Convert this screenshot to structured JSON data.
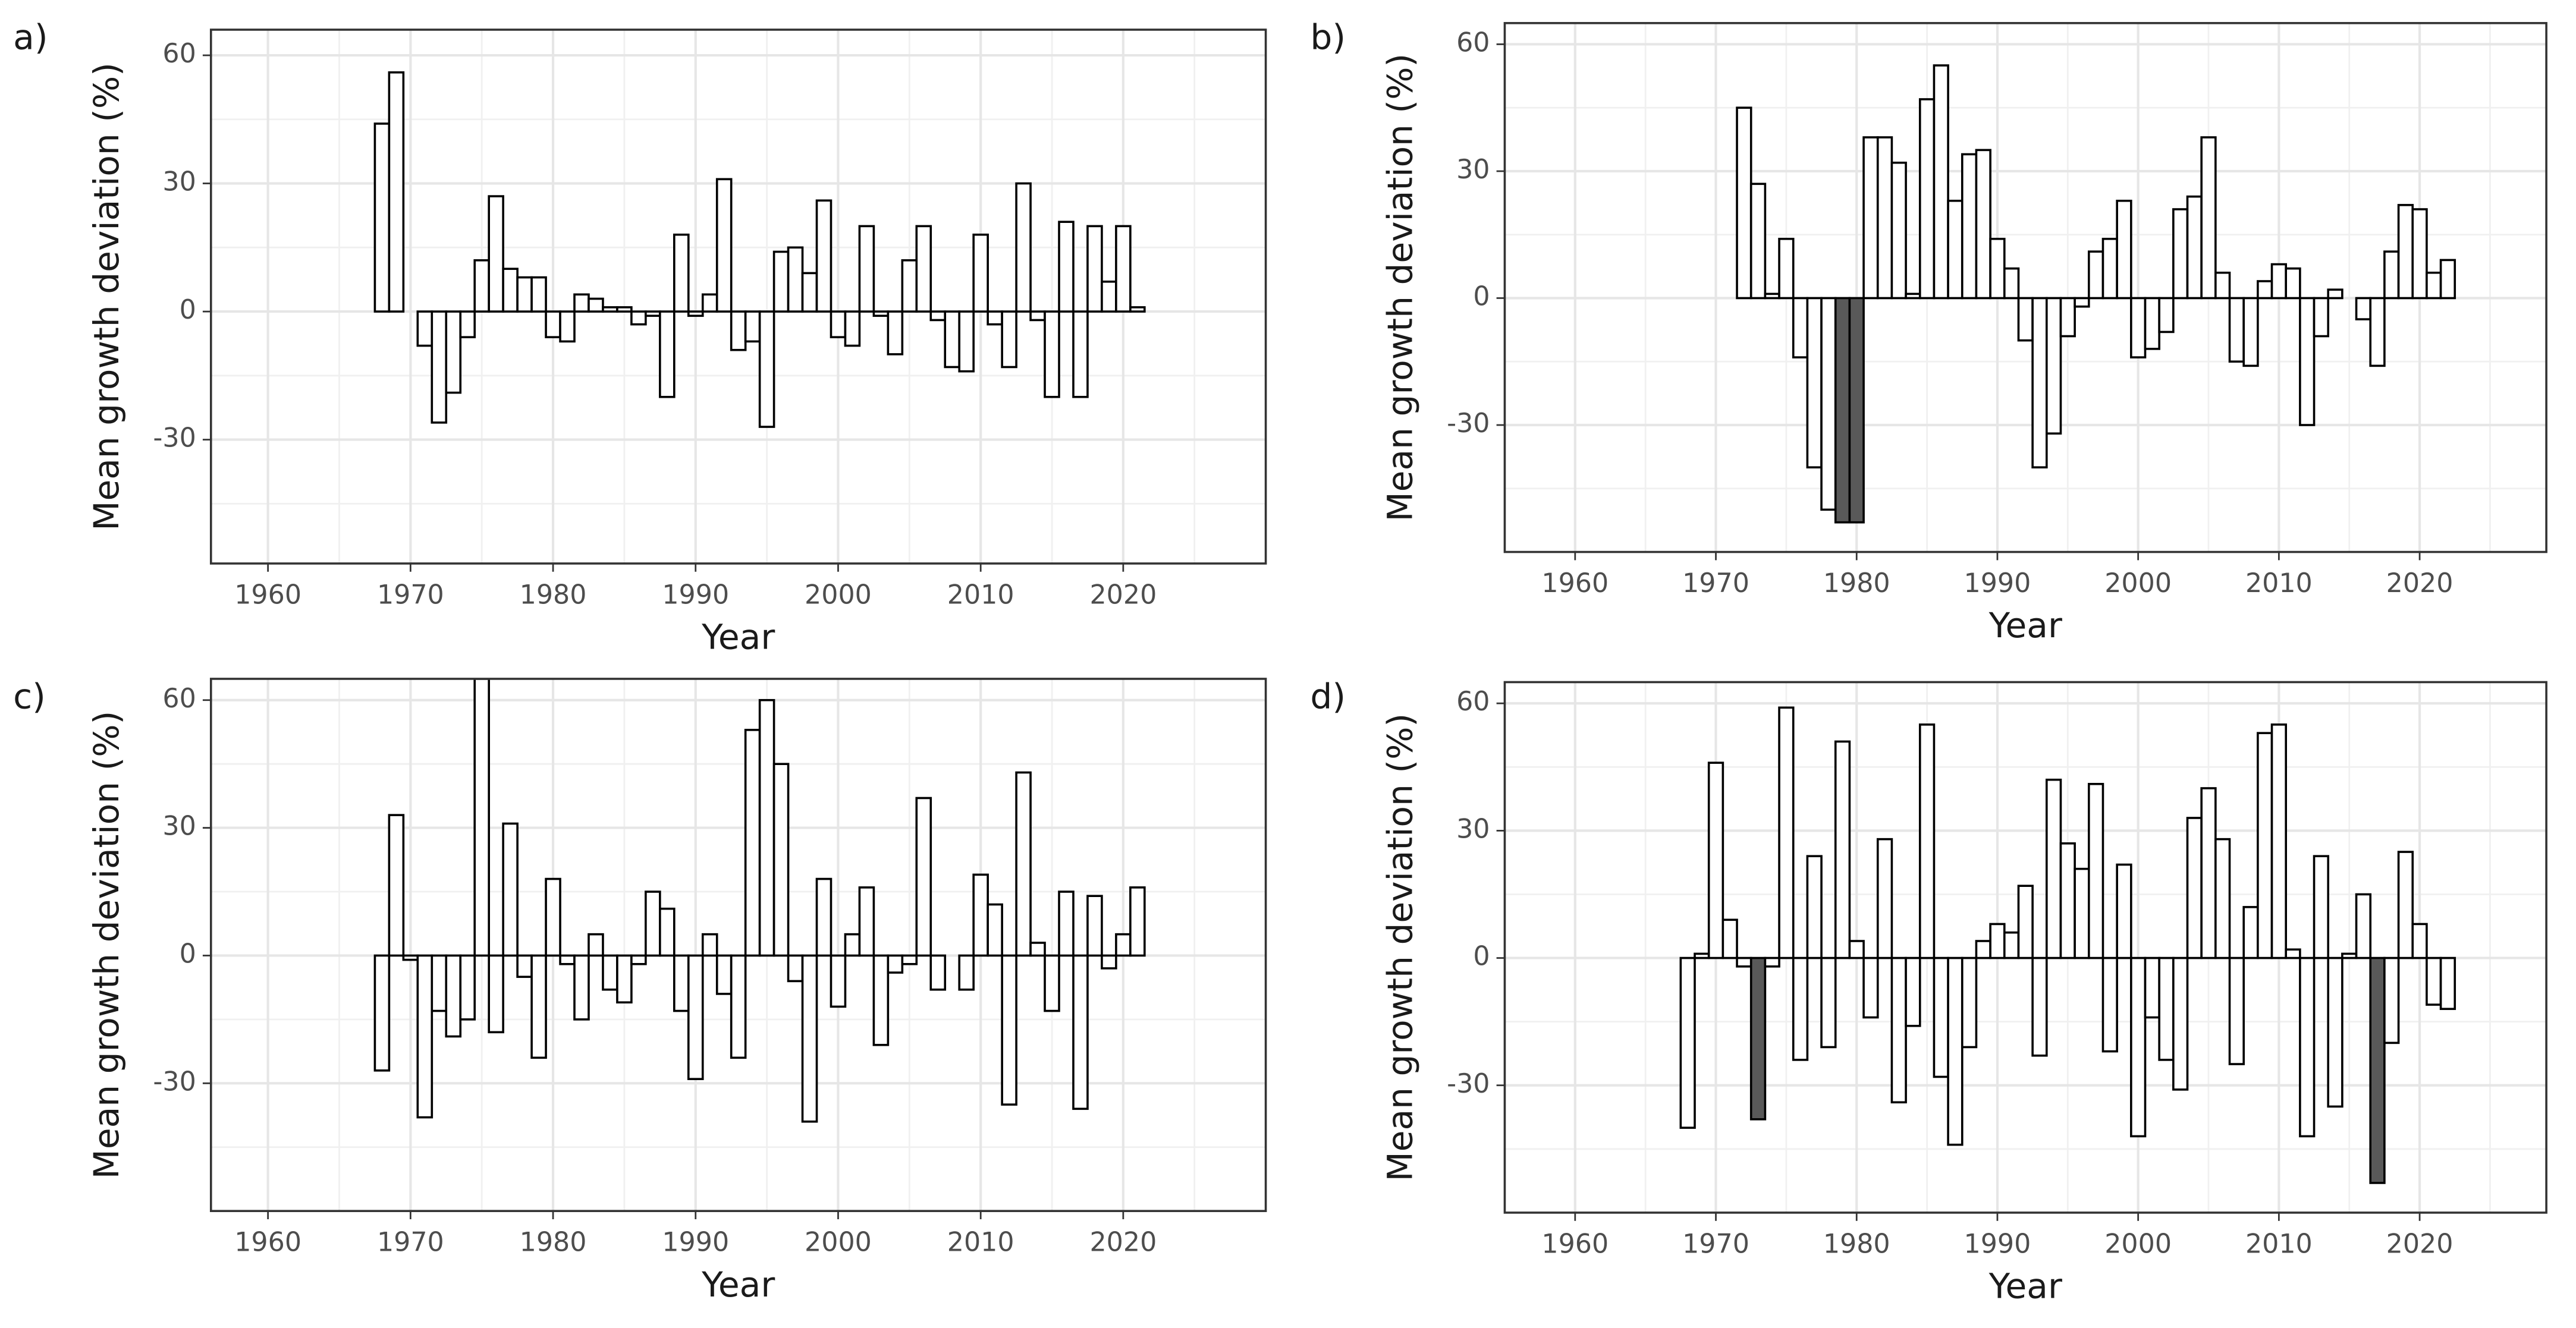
{
  "chart_data": [
    {
      "type": "bar",
      "panel": "a)",
      "x_label": "Year",
      "y_label": "Mean growth deviation (%)",
      "color": "#ffffff",
      "highlight_color": "#595959",
      "highlighted_x": [],
      "grid": true,
      "x": [
        1968,
        1969,
        1970,
        1971,
        1972,
        1973,
        1974,
        1975,
        1976,
        1977,
        1978,
        1979,
        1980,
        1981,
        1982,
        1983,
        1984,
        1985,
        1986,
        1987,
        1988,
        1989,
        1990,
        1991,
        1992,
        1993,
        1994,
        1995,
        1996,
        1997,
        1998,
        1999,
        2000,
        2001,
        2002,
        2003,
        2004,
        2005,
        2006,
        2007,
        2008,
        2009,
        2010,
        2011,
        2012,
        2013,
        2014,
        2015,
        2016,
        2017,
        2018,
        2019,
        2020,
        2021
      ],
      "values": [
        44,
        56,
        0,
        -8,
        -26,
        -19,
        -6,
        12,
        27,
        10,
        8,
        8,
        -6,
        -7,
        4,
        3,
        1,
        1,
        -3,
        -1,
        -20,
        18,
        -1,
        4,
        31,
        -9,
        -7,
        -27,
        14,
        15,
        9,
        26,
        -6,
        -8,
        20,
        -1,
        -10,
        12,
        20,
        -2,
        -13,
        -14,
        18,
        -3,
        -13,
        30,
        -2,
        -20,
        21,
        -20,
        20,
        7,
        20,
        1
      ],
      "xlim": [
        1956,
        2030
      ],
      "xticks": [
        1960,
        1970,
        1980,
        1990,
        2000,
        2010,
        2020
      ],
      "ylim": [
        -59,
        66
      ],
      "yticks": [
        -30,
        0,
        30,
        60
      ]
    },
    {
      "type": "bar",
      "panel": "b)",
      "x_label": "Year",
      "y_label": "Mean growth deviation (%)",
      "color": "#ffffff",
      "highlight_color": "#595959",
      "highlighted_x": [
        1979,
        1980
      ],
      "grid": true,
      "x": [
        1972,
        1973,
        1974,
        1975,
        1976,
        1977,
        1978,
        1979,
        1980,
        1981,
        1982,
        1983,
        1984,
        1985,
        1986,
        1987,
        1988,
        1989,
        1990,
        1991,
        1992,
        1993,
        1994,
        1995,
        1996,
        1997,
        1998,
        1999,
        2000,
        2001,
        2002,
        2003,
        2004,
        2005,
        2006,
        2007,
        2008,
        2009,
        2010,
        2011,
        2012,
        2013,
        2014,
        2015,
        2016,
        2017,
        2018,
        2019,
        2020,
        2021,
        2022
      ],
      "values": [
        45,
        27,
        1,
        14,
        -14,
        -40,
        -50,
        -53,
        -53,
        38,
        38,
        32,
        1,
        47,
        55,
        23,
        34,
        35,
        14,
        7,
        -10,
        -40,
        -32,
        -9,
        -2,
        11,
        14,
        23,
        -14,
        -12,
        -8,
        21,
        24,
        38,
        6,
        -15,
        -16,
        4,
        8,
        7,
        -30,
        -9,
        2,
        0,
        -5,
        -16,
        11,
        22,
        21,
        6,
        9
      ],
      "xlim": [
        1955,
        2029
      ],
      "xticks": [
        1960,
        1970,
        1980,
        1990,
        2000,
        2010,
        2020
      ],
      "ylim": [
        -60,
        65
      ],
      "yticks": [
        -30,
        0,
        30,
        60
      ]
    },
    {
      "type": "bar",
      "panel": "c)",
      "x_label": "Year",
      "y_label": "Mean growth deviation (%)",
      "color": "#ffffff",
      "highlight_color": "#595959",
      "highlighted_x": [],
      "grid": true,
      "x": [
        1968,
        1969,
        1970,
        1971,
        1972,
        1973,
        1974,
        1975,
        1976,
        1977,
        1978,
        1979,
        1980,
        1981,
        1982,
        1983,
        1984,
        1985,
        1986,
        1987,
        1988,
        1989,
        1990,
        1991,
        1992,
        1993,
        1994,
        1995,
        1996,
        1997,
        1998,
        1999,
        2000,
        2001,
        2002,
        2003,
        2004,
        2005,
        2006,
        2007,
        2008,
        2009,
        2010,
        2011,
        2012,
        2013,
        2014,
        2015,
        2016,
        2017,
        2018,
        2019,
        2020,
        2021
      ],
      "values": [
        -27,
        33,
        -1,
        -38,
        -13,
        -19,
        -15,
        65,
        -18,
        31,
        -5,
        -24,
        18,
        -2,
        -15,
        5,
        -8,
        -11,
        -2,
        15,
        11,
        -13,
        -29,
        5,
        -9,
        -24,
        53,
        60,
        45,
        -6,
        -39,
        18,
        -12,
        5,
        16,
        -21,
        -4,
        -2,
        37,
        -8,
        0,
        -8,
        19,
        12,
        -35,
        43,
        3,
        -13,
        15,
        -36,
        14,
        -3,
        5,
        16
      ],
      "xlim": [
        1956,
        2030
      ],
      "xticks": [
        1960,
        1970,
        1980,
        1990,
        2000,
        2010,
        2020
      ],
      "ylim": [
        -60,
        65
      ],
      "yticks": [
        -30,
        0,
        30,
        60
      ]
    },
    {
      "type": "bar",
      "panel": "d)",
      "x_label": "Year",
      "y_label": "Mean growth deviation (%)",
      "color": "#ffffff",
      "highlight_color": "#595959",
      "highlighted_x": [
        1973,
        2017
      ],
      "grid": true,
      "x": [
        1968,
        1969,
        1970,
        1971,
        1972,
        1973,
        1974,
        1975,
        1976,
        1977,
        1978,
        1979,
        1980,
        1981,
        1982,
        1983,
        1984,
        1985,
        1986,
        1987,
        1988,
        1989,
        1990,
        1991,
        1992,
        1993,
        1994,
        1995,
        1996,
        1997,
        1998,
        1999,
        2000,
        2001,
        2002,
        2003,
        2004,
        2005,
        2006,
        2007,
        2008,
        2009,
        2010,
        2011,
        2012,
        2013,
        2014,
        2015,
        2016,
        2017,
        2018,
        2019,
        2020,
        2021,
        2022
      ],
      "values": [
        -40,
        1,
        46,
        9,
        -2,
        -38,
        -2,
        59,
        -24,
        24,
        -21,
        51,
        4,
        -14,
        28,
        -34,
        -16,
        55,
        -28,
        -44,
        -21,
        4,
        8,
        6,
        17,
        -23,
        42,
        27,
        21,
        41,
        -22,
        22,
        -42,
        -14,
        -24,
        -31,
        33,
        40,
        28,
        -25,
        12,
        53,
        55,
        2,
        -42,
        24,
        -35,
        1,
        15,
        -53,
        -20,
        25,
        8,
        -11,
        -12
      ],
      "xlim": [
        1955,
        2029
      ],
      "xticks": [
        1960,
        1970,
        1980,
        1990,
        2000,
        2010,
        2020
      ],
      "ylim": [
        -60,
        65
      ],
      "yticks": [
        -30,
        0,
        30,
        60
      ]
    }
  ]
}
